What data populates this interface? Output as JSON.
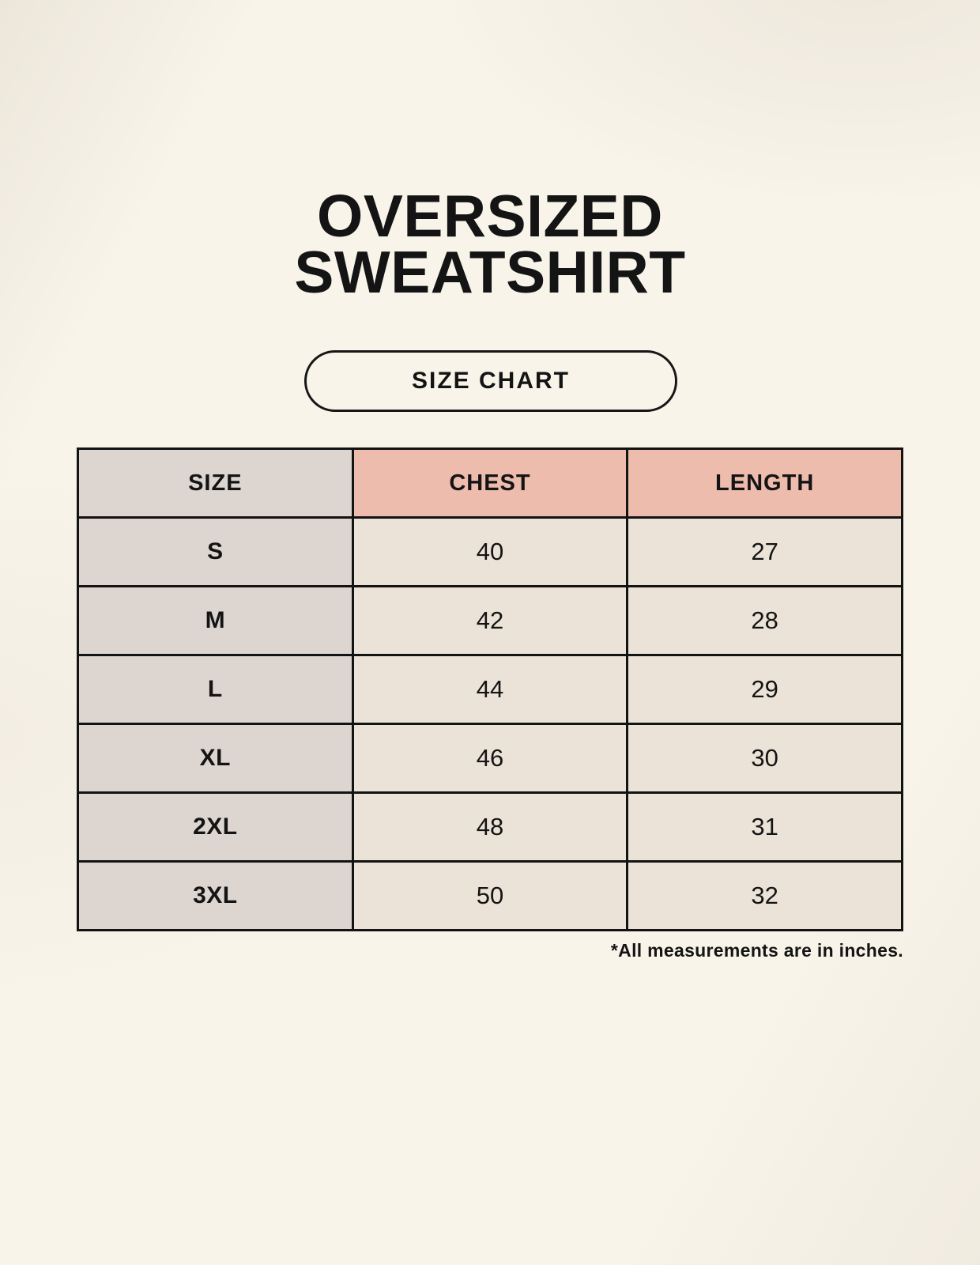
{
  "page": {
    "title_line1": "OVERSIZED",
    "title_line2": "SWEATSHIRT",
    "badge_label": "SIZE CHART",
    "footnote": "*All measurements are in inches."
  },
  "table": {
    "columns": [
      "SIZE",
      "CHEST",
      "LENGTH"
    ],
    "rows": [
      {
        "size": "S",
        "chest": "40",
        "length": "27"
      },
      {
        "size": "M",
        "chest": "42",
        "length": "28"
      },
      {
        "size": "L",
        "chest": "44",
        "length": "29"
      },
      {
        "size": "XL",
        "chest": "46",
        "length": "30"
      },
      {
        "size": "2XL",
        "chest": "48",
        "length": "31"
      },
      {
        "size": "3XL",
        "chest": "50",
        "length": "32"
      }
    ]
  },
  "colors": {
    "page_background": "#f8f4ea",
    "size_column_background": "#ddd5d0",
    "header_accent_background": "#edbcad",
    "data_cell_background": "#ebe3d7",
    "border": "#131313",
    "text": "#141414"
  },
  "chart_data": {
    "type": "table",
    "title": "OVERSIZED SWEATSHIRT",
    "subtitle": "SIZE CHART",
    "columns": [
      "SIZE",
      "CHEST",
      "LENGTH"
    ],
    "rows": [
      [
        "S",
        40,
        27
      ],
      [
        "M",
        42,
        28
      ],
      [
        "L",
        44,
        29
      ],
      [
        "XL",
        46,
        30
      ],
      [
        "2XL",
        48,
        31
      ],
      [
        "3XL",
        50,
        32
      ]
    ],
    "units": "inches",
    "footnote": "*All measurements are in inches."
  }
}
